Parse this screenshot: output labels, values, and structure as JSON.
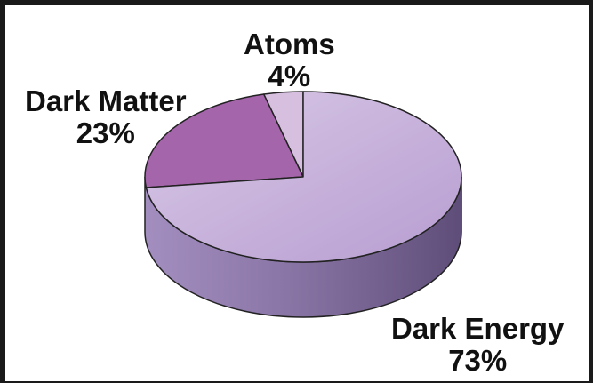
{
  "chart_data": {
    "type": "pie",
    "title": "",
    "slices": [
      {
        "label": "Dark Energy",
        "value": 73,
        "value_label": "73%",
        "color": "#ae94c8"
      },
      {
        "label": "Dark Matter",
        "value": 23,
        "value_label": "23%",
        "color": "#a565ab"
      },
      {
        "label": "Atoms",
        "value": 4,
        "value_label": "4%",
        "color": "#d7bfe0"
      }
    ],
    "three_d": true,
    "side_color": "#7b6795"
  }
}
